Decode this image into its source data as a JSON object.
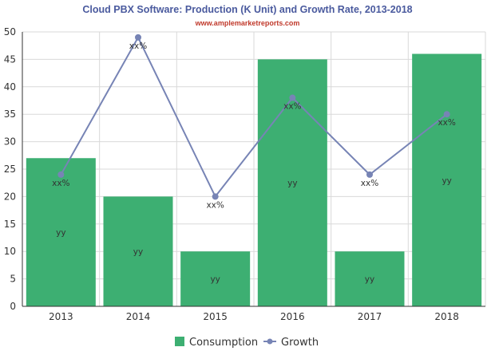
{
  "title": "Cloud PBX Software: Production (K Unit) and Growth Rate, 2013-2018",
  "subtitle": "www.amplemarketreports.com",
  "colors": {
    "bar": "#3daf72",
    "line": "#7784b5",
    "grid": "#d9d9d9",
    "axis": "#333333",
    "title": "#4a5a9e",
    "subtitle": "#c0392b"
  },
  "chart_data": {
    "type": "bar",
    "title": "Cloud PBX Software: Production (K Unit) and Growth Rate, 2013-2018",
    "xlabel": "",
    "ylabel": "",
    "ylim": [
      0,
      50
    ],
    "yticks": [
      0,
      5,
      10,
      15,
      20,
      25,
      30,
      35,
      40,
      45,
      50
    ],
    "categories": [
      "2013",
      "2014",
      "2015",
      "2016",
      "2017",
      "2018"
    ],
    "grid": true,
    "legend_position": "bottom-center",
    "series": [
      {
        "name": "Consumption",
        "type": "bar",
        "values": [
          27,
          20,
          10,
          45,
          10,
          46
        ],
        "labels": [
          "yy",
          "yy",
          "yy",
          "yy",
          "yy",
          "yy"
        ]
      },
      {
        "name": "Growth",
        "type": "line",
        "values": [
          24,
          49,
          20,
          38,
          24,
          35
        ],
        "labels": [
          "xx%",
          "xx%",
          "xx%",
          "xx%",
          "xx%",
          "xx%"
        ]
      }
    ]
  }
}
